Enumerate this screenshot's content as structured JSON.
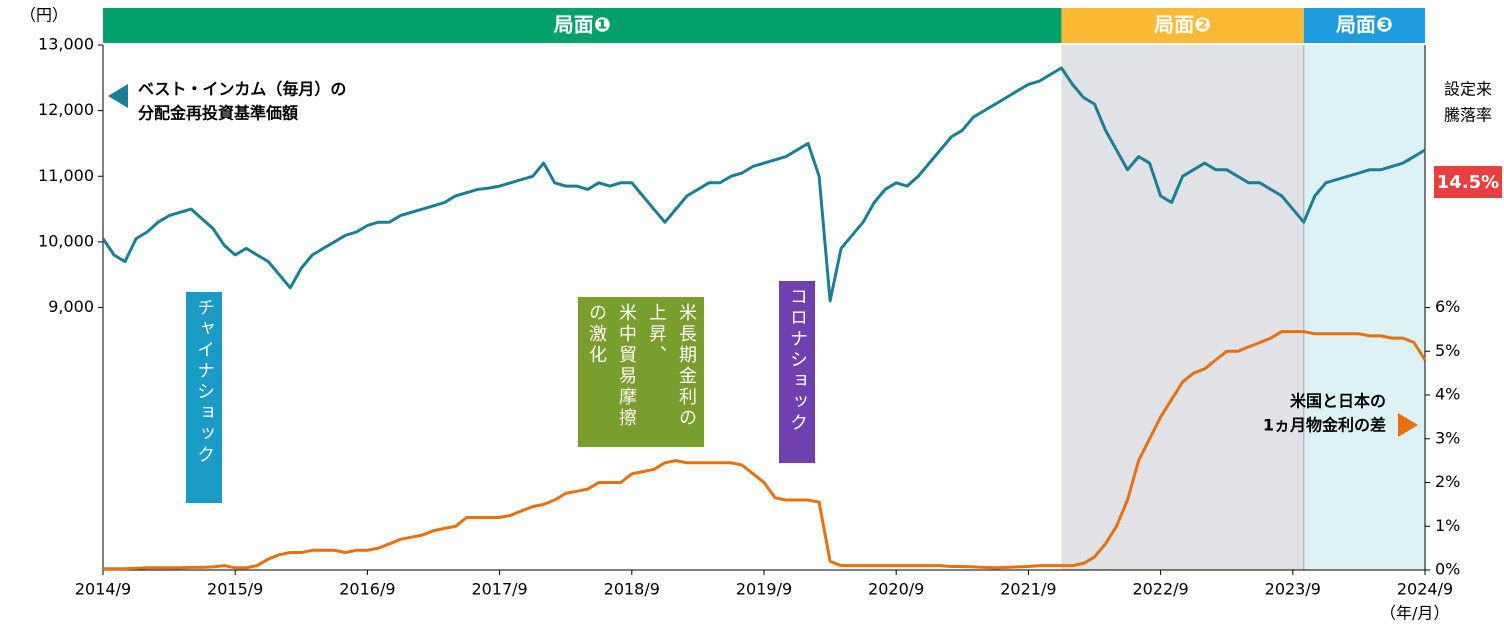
{
  "chart_data": {
    "type": "line",
    "y_unit": "（円）",
    "x_unit": "（年/月）",
    "x": [
      "2014/9",
      "2014/10",
      "2014/11",
      "2014/12",
      "2015/1",
      "2015/2",
      "2015/3",
      "2015/4",
      "2015/5",
      "2015/6",
      "2015/7",
      "2015/8",
      "2015/9",
      "2015/10",
      "2015/11",
      "2015/12",
      "2016/1",
      "2016/2",
      "2016/3",
      "2016/4",
      "2016/5",
      "2016/6",
      "2016/7",
      "2016/8",
      "2016/9",
      "2016/10",
      "2016/11",
      "2016/12",
      "2017/1",
      "2017/2",
      "2017/3",
      "2017/4",
      "2017/5",
      "2017/6",
      "2017/7",
      "2017/8",
      "2017/9",
      "2017/10",
      "2017/11",
      "2017/12",
      "2018/1",
      "2018/2",
      "2018/3",
      "2018/4",
      "2018/5",
      "2018/6",
      "2018/7",
      "2018/8",
      "2018/9",
      "2018/10",
      "2018/11",
      "2018/12",
      "2019/1",
      "2019/2",
      "2019/3",
      "2019/4",
      "2019/5",
      "2019/6",
      "2019/7",
      "2019/8",
      "2019/9",
      "2019/10",
      "2019/11",
      "2019/12",
      "2020/1",
      "2020/2",
      "2020/3",
      "2020/4",
      "2020/5",
      "2020/6",
      "2020/7",
      "2020/8",
      "2020/9",
      "2020/10",
      "2020/11",
      "2020/12",
      "2021/1",
      "2021/2",
      "2021/3",
      "2021/4",
      "2021/5",
      "2021/6",
      "2021/7",
      "2021/8",
      "2021/9",
      "2021/10",
      "2021/11",
      "2021/12",
      "2022/1",
      "2022/2",
      "2022/3",
      "2022/4",
      "2022/5",
      "2022/6",
      "2022/7",
      "2022/8",
      "2022/9",
      "2022/10",
      "2022/11",
      "2022/12",
      "2023/1",
      "2023/2",
      "2023/3",
      "2023/4",
      "2023/5",
      "2023/6",
      "2023/7",
      "2023/8",
      "2023/9",
      "2023/10",
      "2023/11",
      "2023/12",
      "2024/1",
      "2024/2",
      "2024/3",
      "2024/4",
      "2024/5",
      "2024/6",
      "2024/7",
      "2024/8",
      "2024/9"
    ],
    "xticks": [
      "2014/9",
      "2015/9",
      "2016/9",
      "2017/9",
      "2018/9",
      "2019/9",
      "2020/9",
      "2021/9",
      "2022/9",
      "2023/9",
      "2024/9"
    ],
    "ylim": [
      5000,
      13000
    ],
    "yticks": [
      {
        "value": 9000,
        "label": "9,000"
      },
      {
        "value": 10000,
        "label": "10,000"
      },
      {
        "value": 11000,
        "label": "11,000"
      },
      {
        "value": 12000,
        "label": "12,000"
      },
      {
        "value": 13000,
        "label": "13,000"
      }
    ],
    "y2lim": [
      0,
      12
    ],
    "y2ticks": [
      {
        "value": 0,
        "label": "0%"
      },
      {
        "value": 1,
        "label": "1%"
      },
      {
        "value": 2,
        "label": "2%"
      },
      {
        "value": 3,
        "label": "3%"
      },
      {
        "value": 4,
        "label": "4%"
      },
      {
        "value": 5,
        "label": "5%"
      },
      {
        "value": 6,
        "label": "6%"
      }
    ],
    "series": [
      {
        "name": [
          "ベスト・インカム（毎月）の",
          "分配金再投資基準価額"
        ],
        "color": "#1a7f94",
        "axis": "y",
        "values": [
          10050,
          9800,
          9700,
          10050,
          10150,
          10300,
          10400,
          10450,
          10500,
          10350,
          10200,
          9950,
          9800,
          9900,
          9800,
          9700,
          9500,
          9300,
          9600,
          9800,
          9900,
          10000,
          10100,
          10150,
          10250,
          10300,
          10300,
          10400,
          10450,
          10500,
          10550,
          10600,
          10700,
          10750,
          10800,
          10820,
          10850,
          10900,
          10950,
          11000,
          11200,
          10900,
          10850,
          10850,
          10800,
          10900,
          10850,
          10900,
          10900,
          10700,
          10500,
          10300,
          10500,
          10700,
          10800,
          10900,
          10900,
          11000,
          11050,
          11150,
          11200,
          11250,
          11300,
          11400,
          11500,
          11000,
          9100,
          9900,
          10100,
          10300,
          10600,
          10800,
          10900,
          10850,
          11000,
          11200,
          11400,
          11600,
          11700,
          11900,
          12000,
          12100,
          12200,
          12300,
          12400,
          12450,
          12550,
          12650,
          12400,
          12200,
          12100,
          11700,
          11400,
          11100,
          11300,
          11200,
          10700,
          10600,
          11000,
          11100,
          11200,
          11100,
          11100,
          11000,
          10900,
          10900,
          10800,
          10700,
          10500,
          10300,
          10700,
          10900,
          10950,
          11000,
          11050,
          11100,
          11100,
          11150,
          11200,
          11300,
          11400
        ]
      },
      {
        "name": [
          "米国と日本の",
          "1ヵ月物金利の差"
        ],
        "color": "#e8700e",
        "axis": "y2",
        "values": [
          0.03,
          0.03,
          0.03,
          0.04,
          0.05,
          0.05,
          0.05,
          0.05,
          0.06,
          0.06,
          0.07,
          0.1,
          0.05,
          0.05,
          0.1,
          0.25,
          0.35,
          0.4,
          0.4,
          0.45,
          0.45,
          0.45,
          0.4,
          0.45,
          0.45,
          0.5,
          0.6,
          0.7,
          0.75,
          0.8,
          0.9,
          0.95,
          1.0,
          1.2,
          1.2,
          1.2,
          1.2,
          1.25,
          1.35,
          1.45,
          1.5,
          1.6,
          1.75,
          1.8,
          1.85,
          2.0,
          2.0,
          2.0,
          2.2,
          2.25,
          2.3,
          2.45,
          2.5,
          2.45,
          2.45,
          2.45,
          2.45,
          2.45,
          2.4,
          2.2,
          2.0,
          1.65,
          1.6,
          1.6,
          1.6,
          1.55,
          0.2,
          0.1,
          0.1,
          0.1,
          0.1,
          0.1,
          0.1,
          0.1,
          0.1,
          0.1,
          0.1,
          0.08,
          0.08,
          0.07,
          0.06,
          0.05,
          0.06,
          0.07,
          0.08,
          0.1,
          0.1,
          0.1,
          0.1,
          0.15,
          0.3,
          0.6,
          1.0,
          1.6,
          2.5,
          3.0,
          3.5,
          3.9,
          4.3,
          4.5,
          4.6,
          4.8,
          5.0,
          5.0,
          5.1,
          5.2,
          5.3,
          5.45,
          5.45,
          5.45,
          5.4,
          5.4,
          5.4,
          5.4,
          5.4,
          5.35,
          5.35,
          5.3,
          5.3,
          5.2,
          4.8
        ]
      }
    ],
    "phases": [
      {
        "label": "局面❶",
        "start": "2014/9",
        "end": "2021/12",
        "color": "#00a06b",
        "shade": null
      },
      {
        "label": "局面❷",
        "start": "2021/12",
        "end": "2023/10",
        "color": "#fbb934",
        "shade": "#e0e2e5"
      },
      {
        "label": "局面❸",
        "start": "2023/10",
        "end": "2024/9",
        "color": "#1f9be0",
        "shade": "#dcf2f5"
      }
    ],
    "events": [
      {
        "lines": [
          "チャイナショック"
        ],
        "color": "#1a9bc6"
      },
      {
        "lines": [
          "米長期金利の上昇、",
          "米中貿易摩擦の激化"
        ],
        "color": "#7a9e2e"
      },
      {
        "lines": [
          "コロナショック"
        ],
        "color": "#7040b0"
      }
    ],
    "return_label": [
      "設定来",
      "騰落率"
    ],
    "return_value": 14.5,
    "return_value_label": "14.5%"
  }
}
